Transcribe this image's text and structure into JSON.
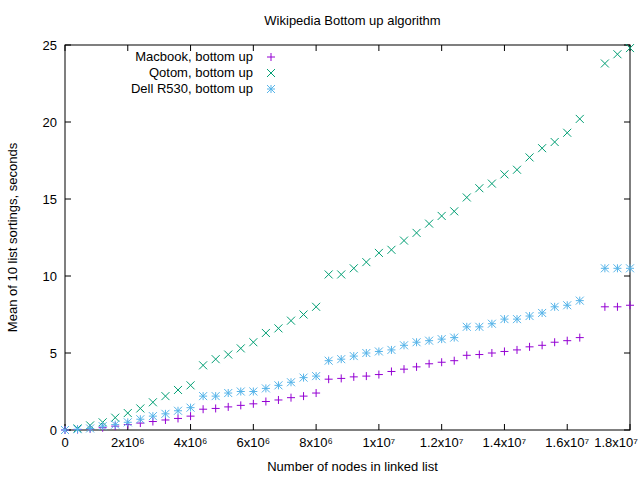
{
  "chart_data": {
    "type": "scatter",
    "title": "Wikipedia Bottom up algorithm",
    "x_label": "Number of nodes in linked list",
    "y_label": "Mean of 10 list sortings, seconds",
    "legend": "top-left",
    "grid": false,
    "x": [
      0,
      400000,
      800000,
      1200000,
      1600000,
      2000000,
      2400000,
      2800000,
      3200000,
      3600000,
      4000000,
      4400000,
      4800000,
      5200000,
      5600000,
      6000000,
      6400000,
      6800000,
      7200000,
      7600000,
      8000000,
      8400000,
      8800000,
      9200000,
      9600000,
      10000000,
      10400000,
      10800000,
      11200000,
      11600000,
      12000000,
      12400000,
      12800000,
      13200000,
      13600000,
      14000000,
      14400000,
      14800000,
      15200000,
      15600000,
      16000000,
      16400000,
      17200000,
      17600000,
      18000000
    ],
    "series": [
      {
        "name": "Macbook, bottom up",
        "color": "#9400d3",
        "marker": "plus",
        "values": [
          0,
          0.03,
          0.08,
          0.15,
          0.25,
          0.35,
          0.45,
          0.55,
          0.65,
          0.75,
          0.9,
          1.35,
          1.4,
          1.5,
          1.6,
          1.7,
          1.85,
          1.95,
          2.1,
          2.2,
          2.4,
          3.3,
          3.35,
          3.45,
          3.5,
          3.6,
          3.8,
          3.95,
          4.1,
          4.3,
          4.4,
          4.5,
          4.85,
          4.9,
          5.0,
          5.1,
          5.2,
          5.4,
          5.5,
          5.7,
          5.8,
          6.0,
          8.0,
          8.0,
          8.1
        ]
      },
      {
        "name": "Qotom, bottom up",
        "color": "#009e73",
        "marker": "cross",
        "values": [
          0,
          0.1,
          0.3,
          0.5,
          0.8,
          1.1,
          1.4,
          1.8,
          2.2,
          2.6,
          2.9,
          4.2,
          4.6,
          4.9,
          5.3,
          5.7,
          6.3,
          6.6,
          7.1,
          7.5,
          8.0,
          10.1,
          10.1,
          10.5,
          10.9,
          11.5,
          11.7,
          12.3,
          12.8,
          13.4,
          13.9,
          14.2,
          15.1,
          15.7,
          16.0,
          16.6,
          16.9,
          17.7,
          18.3,
          18.7,
          19.3,
          20.2,
          23.8,
          24.4,
          24.8
        ]
      },
      {
        "name": "Dell R530, bottom up",
        "color": "#56b4e9",
        "marker": "star",
        "values": [
          0,
          0.05,
          0.1,
          0.25,
          0.35,
          0.5,
          0.7,
          0.9,
          1.05,
          1.25,
          1.45,
          2.2,
          2.2,
          2.4,
          2.5,
          2.5,
          2.7,
          2.9,
          3.1,
          3.4,
          3.5,
          4.5,
          4.6,
          4.8,
          5.0,
          5.1,
          5.2,
          5.5,
          5.7,
          5.8,
          5.9,
          6.0,
          6.7,
          6.7,
          6.9,
          7.2,
          7.2,
          7.4,
          7.6,
          8.0,
          8.1,
          8.4,
          10.5,
          10.5,
          10.5
        ]
      }
    ],
    "xlim": [
      0,
      18000000
    ],
    "ylim": [
      0,
      25
    ],
    "xticks": [
      0,
      {
        "value": 2000000,
        "label": "2x10⁶"
      },
      {
        "value": 4000000,
        "label": "4x10⁶"
      },
      {
        "value": 6000000,
        "label": "6x10⁶"
      },
      {
        "value": 8000000,
        "label": "8x10⁶"
      },
      {
        "value": 10000000,
        "label": "1x10⁷"
      },
      {
        "value": 12000000,
        "label": "1.2x10⁷"
      },
      {
        "value": 14000000,
        "label": "1.4x10⁷"
      },
      {
        "value": 16000000,
        "label": "1.6x10⁷"
      },
      {
        "value": 18000000,
        "label": "1.8x10⁷"
      }
    ],
    "yticks": [
      0,
      5,
      10,
      15,
      20,
      25
    ]
  }
}
